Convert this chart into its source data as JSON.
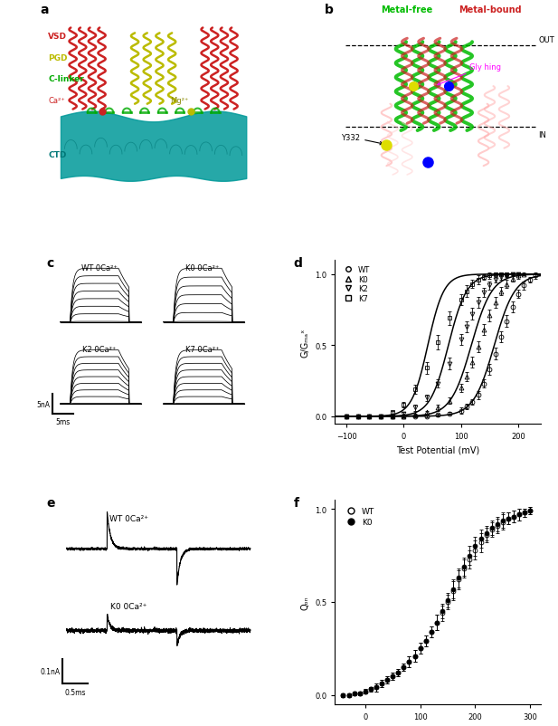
{
  "fig_width": 6.17,
  "fig_height": 8.03,
  "bg_color": "#ffffff",
  "panel_d": {
    "xlabel": "Test Potential (mV)",
    "ylabel": "G/Gₘₐˣ",
    "xlim": [
      -120,
      240
    ],
    "ylim": [
      -0.05,
      1.1
    ],
    "xticks": [
      -100,
      0,
      100,
      200
    ],
    "yticks": [
      0.0,
      0.5,
      1.0
    ],
    "series": [
      {
        "name": "WT",
        "marker": "o",
        "filled": false,
        "v_half": 158,
        "slope": 18,
        "x_data": [
          -100,
          -80,
          -60,
          -40,
          -20,
          0,
          20,
          40,
          60,
          80,
          100,
          110,
          120,
          130,
          140,
          150,
          160,
          170,
          180,
          190,
          200,
          210,
          220,
          230
        ],
        "y_data": [
          0,
          0,
          0,
          0,
          0,
          0,
          0,
          0,
          0.01,
          0.02,
          0.04,
          0.07,
          0.1,
          0.15,
          0.23,
          0.33,
          0.44,
          0.56,
          0.67,
          0.77,
          0.86,
          0.92,
          0.96,
          0.99
        ],
        "y_err": [
          0.005,
          0.005,
          0.005,
          0.005,
          0.005,
          0.005,
          0.005,
          0.005,
          0.01,
          0.01,
          0.02,
          0.02,
          0.02,
          0.03,
          0.03,
          0.04,
          0.04,
          0.04,
          0.04,
          0.04,
          0.03,
          0.03,
          0.02,
          0.02
        ]
      },
      {
        "name": "K0",
        "marker": "^",
        "filled": false,
        "v_half": 118,
        "slope": 18,
        "x_data": [
          -100,
          -80,
          -60,
          -40,
          -20,
          0,
          20,
          40,
          60,
          80,
          100,
          110,
          120,
          130,
          140,
          150,
          160,
          170,
          180,
          190,
          200,
          210
        ],
        "y_data": [
          0,
          0,
          0,
          0,
          0,
          0,
          0.01,
          0.03,
          0.06,
          0.11,
          0.2,
          0.28,
          0.38,
          0.49,
          0.61,
          0.71,
          0.8,
          0.88,
          0.93,
          0.97,
          0.99,
          1.0
        ],
        "y_err": [
          0.005,
          0.005,
          0.005,
          0.005,
          0.005,
          0.005,
          0.01,
          0.01,
          0.02,
          0.02,
          0.03,
          0.03,
          0.04,
          0.04,
          0.04,
          0.04,
          0.04,
          0.03,
          0.03,
          0.02,
          0.02,
          0.01
        ]
      },
      {
        "name": "K2",
        "marker": "v",
        "filled": false,
        "v_half": 78,
        "slope": 16,
        "x_data": [
          -100,
          -80,
          -60,
          -40,
          -20,
          0,
          20,
          40,
          60,
          80,
          100,
          110,
          120,
          130,
          140,
          150,
          160,
          170,
          180,
          190,
          200
        ],
        "y_data": [
          0,
          0,
          0,
          0,
          0,
          0.02,
          0.06,
          0.13,
          0.23,
          0.37,
          0.54,
          0.63,
          0.72,
          0.8,
          0.87,
          0.92,
          0.96,
          0.98,
          0.99,
          1.0,
          1.0
        ],
        "y_err": [
          0.005,
          0.005,
          0.005,
          0.005,
          0.005,
          0.01,
          0.02,
          0.02,
          0.03,
          0.04,
          0.04,
          0.04,
          0.04,
          0.04,
          0.03,
          0.03,
          0.02,
          0.02,
          0.01,
          0.01,
          0.01
        ]
      },
      {
        "name": "K7",
        "marker": "s",
        "filled": false,
        "v_half": 42,
        "slope": 14,
        "x_data": [
          -100,
          -80,
          -60,
          -40,
          -20,
          0,
          20,
          40,
          60,
          80,
          100,
          110,
          120,
          130,
          140,
          150,
          160,
          170,
          180
        ],
        "y_data": [
          0,
          0,
          0,
          0,
          0.03,
          0.08,
          0.19,
          0.34,
          0.52,
          0.69,
          0.82,
          0.88,
          0.93,
          0.96,
          0.98,
          0.99,
          1.0,
          1.0,
          1.0
        ],
        "y_err": [
          0.005,
          0.005,
          0.005,
          0.005,
          0.01,
          0.02,
          0.03,
          0.04,
          0.05,
          0.05,
          0.04,
          0.04,
          0.03,
          0.03,
          0.02,
          0.02,
          0.01,
          0.01,
          0.01
        ]
      }
    ]
  },
  "panel_f": {
    "xlabel": "Test Potential (mV)",
    "ylabel": "Qₒₙ",
    "xlim": [
      -55,
      320
    ],
    "ylim": [
      -0.05,
      1.05
    ],
    "xticks": [
      0,
      100,
      200,
      300
    ],
    "yticks": [
      0.0,
      0.5,
      1.0
    ],
    "series": [
      {
        "name": "WT",
        "marker": "o",
        "filled": false,
        "x_data": [
          -40,
          -30,
          -20,
          -10,
          0,
          10,
          20,
          30,
          40,
          50,
          60,
          70,
          80,
          90,
          100,
          110,
          120,
          130,
          140,
          150,
          160,
          170,
          180,
          190,
          200,
          210,
          220,
          230,
          240,
          250,
          260,
          270,
          280,
          290,
          300
        ],
        "y_data": [
          0.0,
          0.0,
          0.01,
          0.01,
          0.02,
          0.03,
          0.04,
          0.06,
          0.08,
          0.1,
          0.12,
          0.15,
          0.18,
          0.21,
          0.25,
          0.29,
          0.34,
          0.39,
          0.44,
          0.5,
          0.56,
          0.62,
          0.68,
          0.73,
          0.78,
          0.82,
          0.86,
          0.89,
          0.91,
          0.93,
          0.95,
          0.96,
          0.97,
          0.98,
          0.99
        ],
        "y_err": [
          0.01,
          0.01,
          0.01,
          0.01,
          0.01,
          0.01,
          0.02,
          0.02,
          0.02,
          0.02,
          0.02,
          0.02,
          0.03,
          0.03,
          0.03,
          0.03,
          0.03,
          0.04,
          0.04,
          0.04,
          0.05,
          0.05,
          0.05,
          0.05,
          0.05,
          0.05,
          0.04,
          0.04,
          0.04,
          0.04,
          0.03,
          0.03,
          0.03,
          0.02,
          0.02
        ]
      },
      {
        "name": "K0",
        "marker": "o",
        "filled": true,
        "x_data": [
          -40,
          -30,
          -20,
          -10,
          0,
          10,
          20,
          30,
          40,
          50,
          60,
          70,
          80,
          90,
          100,
          110,
          120,
          130,
          140,
          150,
          160,
          170,
          180,
          190,
          200,
          210,
          220,
          230,
          240,
          250,
          260,
          270,
          280,
          290,
          300
        ],
        "y_data": [
          0.0,
          0.0,
          0.01,
          0.01,
          0.02,
          0.03,
          0.04,
          0.06,
          0.08,
          0.1,
          0.12,
          0.15,
          0.18,
          0.21,
          0.25,
          0.29,
          0.34,
          0.39,
          0.45,
          0.51,
          0.57,
          0.63,
          0.69,
          0.75,
          0.8,
          0.84,
          0.87,
          0.9,
          0.92,
          0.94,
          0.95,
          0.96,
          0.97,
          0.98,
          0.99
        ],
        "y_err": [
          0.01,
          0.01,
          0.01,
          0.01,
          0.01,
          0.01,
          0.02,
          0.02,
          0.02,
          0.02,
          0.02,
          0.02,
          0.03,
          0.03,
          0.03,
          0.03,
          0.03,
          0.04,
          0.04,
          0.04,
          0.05,
          0.05,
          0.05,
          0.05,
          0.05,
          0.05,
          0.04,
          0.04,
          0.04,
          0.04,
          0.03,
          0.03,
          0.03,
          0.02,
          0.02
        ]
      }
    ]
  }
}
